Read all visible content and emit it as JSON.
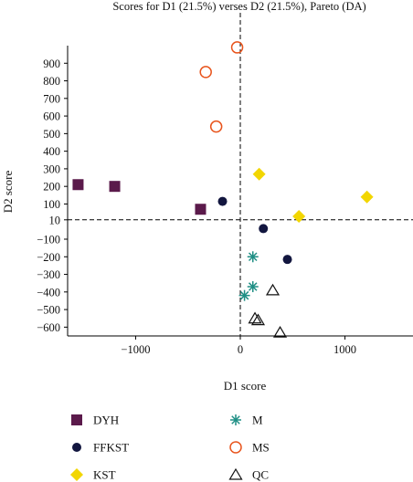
{
  "chart_data": {
    "type": "scatter",
    "title": "Scores for D1 (21.5%) verses D2 (21.5%), Pareto (DA)",
    "xlabel": "D1 score",
    "ylabel": "D2 score",
    "xlim": [
      -1650,
      1650
    ],
    "ylim": [
      -650,
      1000
    ],
    "xticks": [
      -1000,
      0,
      1000
    ],
    "xtick_labels": [
      "−1000",
      "0",
      "1000"
    ],
    "yticks": [
      900,
      800,
      700,
      600,
      500,
      400,
      300,
      200,
      100,
      10,
      -100,
      -200,
      -300,
      -400,
      -500,
      -600
    ],
    "ytick_labels": [
      "900",
      "800",
      "700",
      "600",
      "500",
      "400",
      "300",
      "200",
      "100",
      "10",
      "−100",
      "−200",
      "−300",
      "−400",
      "−500",
      "−600"
    ],
    "reference_lines": {
      "x": 0,
      "y": 10
    },
    "grid": false,
    "legend_placement": "bottom",
    "series": [
      {
        "name": "DYH",
        "marker": "square",
        "color": "#5b1a4b",
        "points": [
          [
            -1550,
            210
          ],
          [
            -1200,
            200
          ],
          [
            -380,
            70
          ]
        ]
      },
      {
        "name": "M",
        "marker": "asterisk",
        "color": "#1f8f85",
        "points": [
          [
            120,
            -200
          ],
          [
            120,
            -370
          ],
          [
            40,
            -420
          ]
        ]
      },
      {
        "name": "FFKST",
        "marker": "circle",
        "color": "#12163f",
        "points": [
          [
            -170,
            115
          ],
          [
            220,
            -40
          ],
          [
            450,
            -215
          ]
        ]
      },
      {
        "name": "MS",
        "marker": "open-circle",
        "color": "#e8541c",
        "points": [
          [
            -30,
            990
          ],
          [
            -330,
            850
          ],
          [
            -230,
            540
          ]
        ]
      },
      {
        "name": "KST",
        "marker": "diamond",
        "color": "#f2d600",
        "points": [
          [
            180,
            270
          ],
          [
            1210,
            140
          ],
          [
            560,
            30
          ]
        ]
      },
      {
        "name": "QC",
        "marker": "open-triangle",
        "color": "#111111",
        "points": [
          [
            310,
            -390
          ],
          [
            140,
            -550
          ],
          [
            170,
            -560
          ],
          [
            380,
            -630
          ]
        ]
      }
    ]
  }
}
